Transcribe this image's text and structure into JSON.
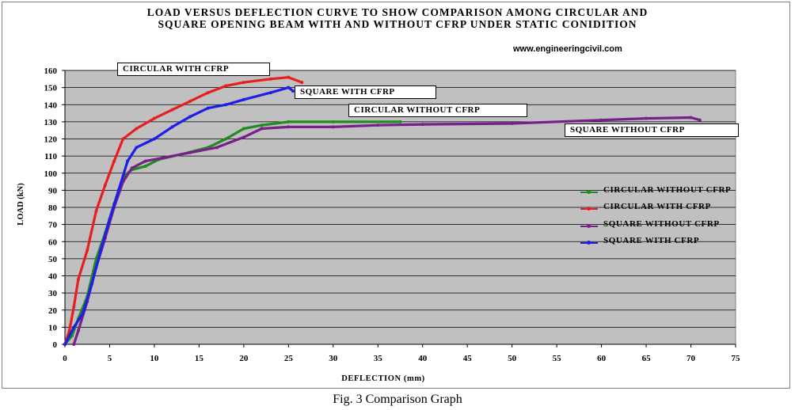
{
  "chart_data": {
    "type": "line",
    "title_line1": "LOAD VERSUS DEFLECTION CURVE TO SHOW COMPARISON AMONG CIRCULAR AND",
    "title_line2": "SQUARE OPENING BEAM WITH AND WITHOUT CFRP UNDER STATIC CONIDITION",
    "xlabel": "DEFLECTION (mm)",
    "ylabel": "LOAD (kN)",
    "xlim": [
      0,
      75
    ],
    "ylim": [
      0,
      160
    ],
    "x_ticks": [
      "0",
      "5",
      "10",
      "15",
      "20",
      "25",
      "30",
      "35",
      "40",
      "45",
      "50",
      "55",
      "60",
      "65",
      "70",
      "75"
    ],
    "y_ticks": [
      "0",
      "10",
      "20",
      "30",
      "40",
      "50",
      "60",
      "70",
      "80",
      "90",
      "100",
      "110",
      "120",
      "130",
      "140",
      "150",
      "160"
    ],
    "grid": "horizontal",
    "plot_background": "#C0C0C0",
    "legend_position": "right",
    "series": [
      {
        "name": "CIRCULAR WITHOUT CFRP",
        "color": "#1E8C1E",
        "points": [
          [
            0,
            0
          ],
          [
            0.8,
            5
          ],
          [
            1.5,
            15
          ],
          [
            2.5,
            28
          ],
          [
            3.5,
            50
          ],
          [
            4.5,
            65
          ],
          [
            5.5,
            82
          ],
          [
            6.5,
            98
          ],
          [
            7.5,
            102
          ],
          [
            9,
            104
          ],
          [
            10.5,
            108
          ],
          [
            13,
            111
          ],
          [
            16,
            115
          ],
          [
            18,
            120
          ],
          [
            20,
            126
          ],
          [
            22,
            128
          ],
          [
            25,
            130
          ],
          [
            30,
            130
          ],
          [
            37.5,
            130
          ]
        ]
      },
      {
        "name": "CIRCULAR WITH CFRP",
        "color": "#E81E1E",
        "points": [
          [
            0,
            0
          ],
          [
            0.5,
            8
          ],
          [
            1,
            22
          ],
          [
            1.5,
            38
          ],
          [
            2.5,
            55
          ],
          [
            3.5,
            78
          ],
          [
            4.5,
            93
          ],
          [
            5.5,
            107
          ],
          [
            6.5,
            120
          ],
          [
            8,
            126
          ],
          [
            10,
            132
          ],
          [
            12,
            137
          ],
          [
            14,
            142
          ],
          [
            16,
            147
          ],
          [
            18,
            151
          ],
          [
            20,
            153
          ],
          [
            23,
            155
          ],
          [
            25,
            156
          ],
          [
            26.5,
            153
          ]
        ]
      },
      {
        "name": "SQUARE WITHOUT CFRP",
        "color": "#7A1E8C",
        "points": [
          [
            1,
            0
          ],
          [
            1.5,
            8
          ],
          [
            2.5,
            25
          ],
          [
            3.5,
            45
          ],
          [
            4.5,
            62
          ],
          [
            5.5,
            80
          ],
          [
            6.5,
            95
          ],
          [
            7.5,
            103
          ],
          [
            9,
            107
          ],
          [
            11,
            109
          ],
          [
            14,
            112
          ],
          [
            17,
            115
          ],
          [
            20,
            121
          ],
          [
            22,
            126
          ],
          [
            25,
            127
          ],
          [
            30,
            127
          ],
          [
            35,
            128
          ],
          [
            40,
            128.5
          ],
          [
            50,
            129
          ],
          [
            60,
            131
          ],
          [
            65,
            132
          ],
          [
            70,
            132.5
          ],
          [
            71,
            131
          ]
        ]
      },
      {
        "name": "SQUARE WITH CFRP",
        "color": "#1E1EE8",
        "points": [
          [
            0,
            0
          ],
          [
            1,
            10
          ],
          [
            2,
            18
          ],
          [
            3,
            35
          ],
          [
            4,
            55
          ],
          [
            5,
            73
          ],
          [
            6,
            90
          ],
          [
            7,
            107
          ],
          [
            8,
            115
          ],
          [
            10,
            120
          ],
          [
            12,
            127
          ],
          [
            14,
            133
          ],
          [
            16,
            138
          ],
          [
            18,
            140
          ],
          [
            20,
            143
          ],
          [
            23,
            147
          ],
          [
            25,
            150
          ],
          [
            25.5,
            148
          ]
        ]
      }
    ]
  },
  "annotations": {
    "circular_with_cfrp": "CIRCULAR WITH CFRP",
    "square_with_cfrp": "SQUARE WITH CFRP",
    "circular_without_cfrp": "CIRCULAR WITHOUT CFRP",
    "square_without_cfrp": "SQUARE WITHOUT CFRP"
  },
  "website": "www.engineeringcivil.com",
  "caption": "Fig. 3 Comparison Graph"
}
